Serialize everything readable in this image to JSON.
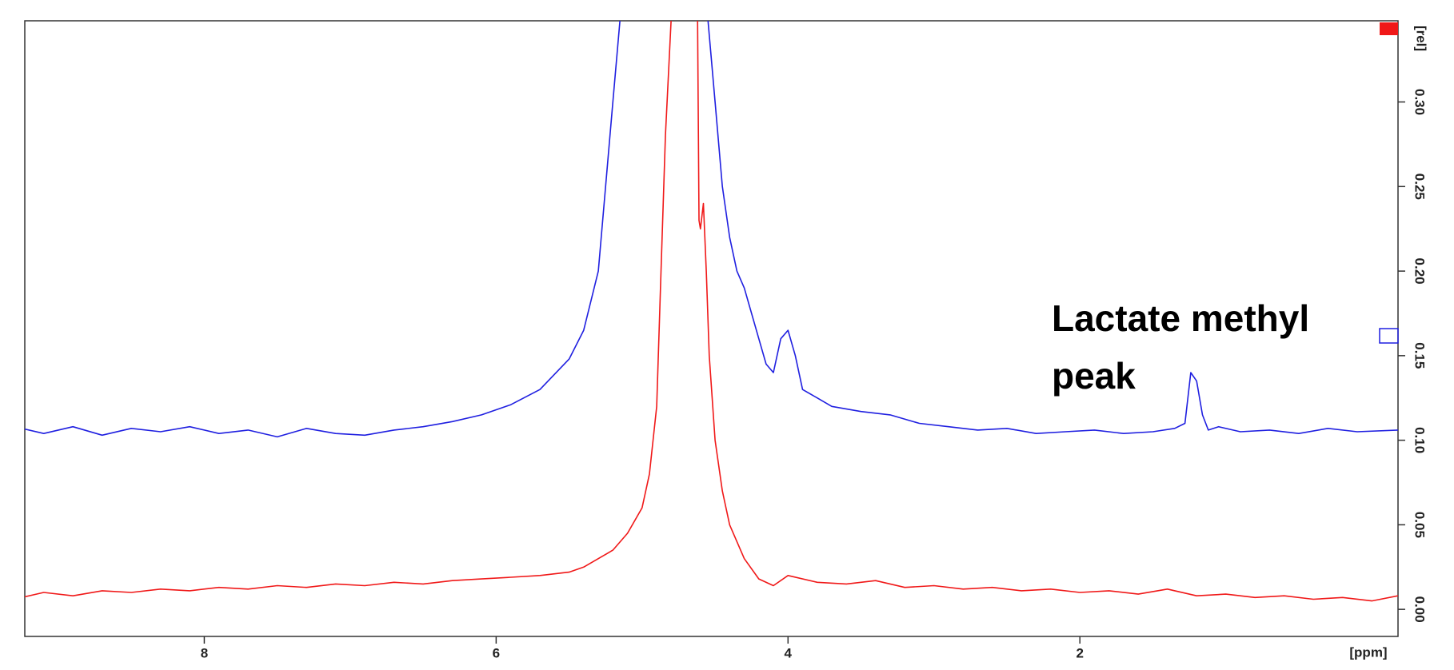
{
  "chart_data": {
    "type": "line",
    "annotation": "Lactate methyl peak",
    "xlabel": "[ppm]",
    "ylabel": "[rel]",
    "xlim": [
      9.23,
      -0.18
    ],
    "xticks": [
      8,
      6,
      4,
      2
    ],
    "ylim": [
      -0.016,
      0.348
    ],
    "yticks": [
      {
        "value": 0,
        "label": "0.00"
      },
      {
        "value": 0.05,
        "label": "0.05"
      },
      {
        "value": 0.1,
        "label": "0.10"
      },
      {
        "value": 0.15,
        "label": "0.15"
      },
      {
        "value": 0.2,
        "label": "0.20"
      },
      {
        "value": 0.25,
        "label": "0.25"
      },
      {
        "value": 0.3,
        "label": "0.30"
      }
    ],
    "series": [
      {
        "color": "#1f1fe0",
        "x": [
          9.25,
          9.1,
          8.9,
          8.7,
          8.5,
          8.3,
          8.1,
          7.9,
          7.7,
          7.5,
          7.3,
          7.1,
          6.9,
          6.7,
          6.5,
          6.3,
          6.1,
          5.9,
          5.7,
          5.5,
          5.4,
          5.3,
          5.25,
          5.2,
          5.15,
          4.55,
          4.5,
          4.45,
          4.4,
          4.35,
          4.3,
          4.2,
          4.15,
          4.1,
          4.05,
          4.0,
          3.95,
          3.9,
          3.8,
          3.7,
          3.5,
          3.3,
          3.1,
          2.9,
          2.7,
          2.5,
          2.3,
          2.1,
          1.9,
          1.7,
          1.5,
          1.35,
          1.28,
          1.24,
          1.2,
          1.16,
          1.12,
          1.05,
          0.9,
          0.7,
          0.5,
          0.3,
          0.1,
          -0.18
        ],
        "values": [
          0.107,
          0.104,
          0.108,
          0.103,
          0.107,
          0.105,
          0.108,
          0.104,
          0.106,
          0.102,
          0.107,
          0.104,
          0.103,
          0.106,
          0.108,
          0.111,
          0.115,
          0.121,
          0.13,
          0.148,
          0.165,
          0.2,
          0.25,
          0.3,
          0.35,
          0.35,
          0.3,
          0.25,
          0.22,
          0.2,
          0.19,
          0.16,
          0.145,
          0.14,
          0.16,
          0.165,
          0.15,
          0.13,
          0.125,
          0.12,
          0.117,
          0.115,
          0.11,
          0.108,
          0.106,
          0.107,
          0.104,
          0.105,
          0.106,
          0.104,
          0.105,
          0.107,
          0.11,
          0.14,
          0.135,
          0.115,
          0.106,
          0.108,
          0.105,
          0.106,
          0.104,
          0.107,
          0.105,
          0.106
        ]
      },
      {
        "color": "#f01818",
        "x": [
          9.25,
          9.1,
          8.9,
          8.7,
          8.5,
          8.3,
          8.1,
          7.9,
          7.7,
          7.5,
          7.3,
          7.1,
          6.9,
          6.7,
          6.5,
          6.3,
          6.1,
          5.9,
          5.7,
          5.5,
          5.4,
          5.3,
          5.2,
          5.1,
          5.0,
          4.95,
          4.9,
          4.87,
          4.84,
          4.8,
          4.62,
          4.61,
          4.6,
          4.58,
          4.56,
          4.54,
          4.5,
          4.45,
          4.4,
          4.3,
          4.2,
          4.1,
          4.0,
          3.8,
          3.6,
          3.4,
          3.2,
          3.0,
          2.8,
          2.6,
          2.4,
          2.2,
          2.0,
          1.8,
          1.6,
          1.4,
          1.2,
          1.0,
          0.8,
          0.6,
          0.4,
          0.2,
          0.0,
          -0.18
        ],
        "values": [
          0.007,
          0.01,
          0.008,
          0.011,
          0.01,
          0.012,
          0.011,
          0.013,
          0.012,
          0.014,
          0.013,
          0.015,
          0.014,
          0.016,
          0.015,
          0.017,
          0.018,
          0.019,
          0.02,
          0.022,
          0.025,
          0.03,
          0.035,
          0.045,
          0.06,
          0.08,
          0.12,
          0.2,
          0.28,
          0.35,
          0.35,
          0.23,
          0.225,
          0.24,
          0.2,
          0.15,
          0.1,
          0.07,
          0.05,
          0.03,
          0.018,
          0.014,
          0.02,
          0.016,
          0.015,
          0.017,
          0.013,
          0.014,
          0.012,
          0.013,
          0.011,
          0.012,
          0.01,
          0.011,
          0.009,
          0.012,
          0.008,
          0.009,
          0.007,
          0.008,
          0.006,
          0.007,
          0.005,
          0.008
        ]
      }
    ]
  }
}
